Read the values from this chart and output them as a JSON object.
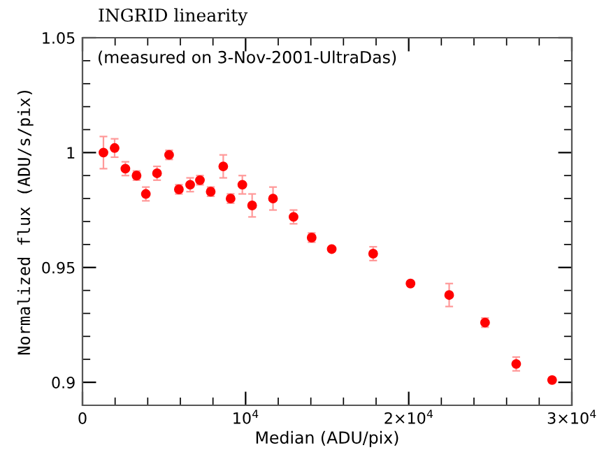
{
  "chart_data": {
    "type": "scatter",
    "title": "INGRID linearity",
    "xlabel": "Median (ADU/pix)",
    "ylabel": "Normalized flux (ADU/s/pix)",
    "annotations": [
      "(measured on 3-Nov-2001-UltraDas)"
    ],
    "x": [
      1285,
      1970,
      2630,
      3315,
      3885,
      4570,
      5310,
      5910,
      6600,
      7200,
      7860,
      8630,
      9080,
      9800,
      10400,
      11680,
      12940,
      14050,
      15280,
      17820,
      20110,
      22480,
      24680,
      26590,
      28790
    ],
    "series": [
      {
        "color": "#ff0000",
        "values": [
          1.0,
          1.002,
          0.993,
          0.99,
          0.982,
          0.991,
          0.999,
          0.984,
          0.986,
          0.988,
          0.983,
          0.994,
          0.98,
          0.986,
          0.977,
          0.98,
          0.972,
          0.963,
          0.958,
          0.956,
          0.943,
          0.938,
          0.926,
          0.908,
          0.901
        ],
        "errors": [
          0.007,
          0.004,
          0.003,
          0.002,
          0.003,
          0.003,
          0.002,
          0.002,
          0.003,
          0.002,
          0.002,
          0.005,
          0.002,
          0.004,
          0.005,
          0.005,
          0.003,
          0.002,
          0.001,
          0.003,
          0.001,
          0.005,
          0.002,
          0.003,
          0.001
        ]
      }
    ],
    "marker": "circle",
    "xlim": [
      0,
      30000
    ],
    "ylim": [
      0.89,
      1.05
    ],
    "xticks": [
      {
        "value": 0,
        "label": "0"
      },
      {
        "value": 10000,
        "label": "10$^{4}$"
      },
      {
        "value": 20000,
        "label": "2×10$^{4}$"
      },
      {
        "value": 30000,
        "label": "3×10$^{4}$"
      }
    ],
    "yticks": [
      0.9,
      0.95,
      1,
      1.05
    ],
    "grid": false,
    "legend": false
  }
}
